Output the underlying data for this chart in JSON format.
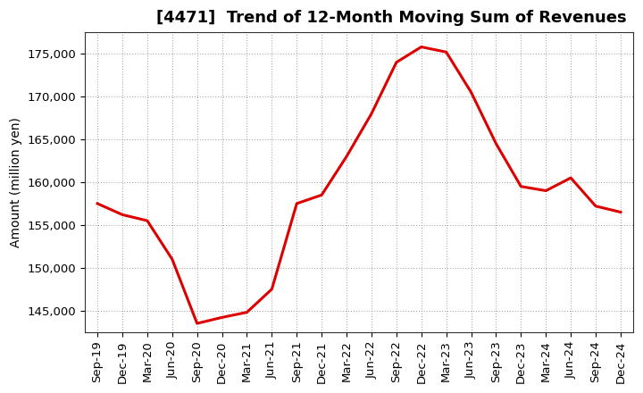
{
  "title": "[4471]  Trend of 12-Month Moving Sum of Revenues",
  "ylabel": "Amount (million yen)",
  "background_color": "#ffffff",
  "plot_bg_color": "#ffffff",
  "line_color": "#dd0000",
  "line_width": 2.2,
  "grid_color": "#999999",
  "tick_labels": [
    "Sep-19",
    "Dec-19",
    "Mar-20",
    "Jun-20",
    "Sep-20",
    "Dec-20",
    "Mar-21",
    "Jun-21",
    "Sep-21",
    "Dec-21",
    "Mar-22",
    "Jun-22",
    "Sep-22",
    "Dec-22",
    "Mar-23",
    "Jun-23",
    "Sep-23",
    "Dec-23",
    "Mar-24",
    "Jun-24",
    "Sep-24",
    "Dec-24"
  ],
  "values": [
    157500,
    156200,
    155500,
    151000,
    143500,
    144200,
    144800,
    147500,
    157500,
    158500,
    163000,
    168000,
    174000,
    175800,
    175200,
    170500,
    164500,
    159500,
    159000,
    160500,
    157200,
    156500
  ],
  "ylim": [
    142500,
    177500
  ],
  "yticks": [
    145000,
    150000,
    155000,
    160000,
    165000,
    170000,
    175000
  ],
  "title_fontsize": 13,
  "axis_label_fontsize": 10,
  "tick_fontsize": 9.5
}
